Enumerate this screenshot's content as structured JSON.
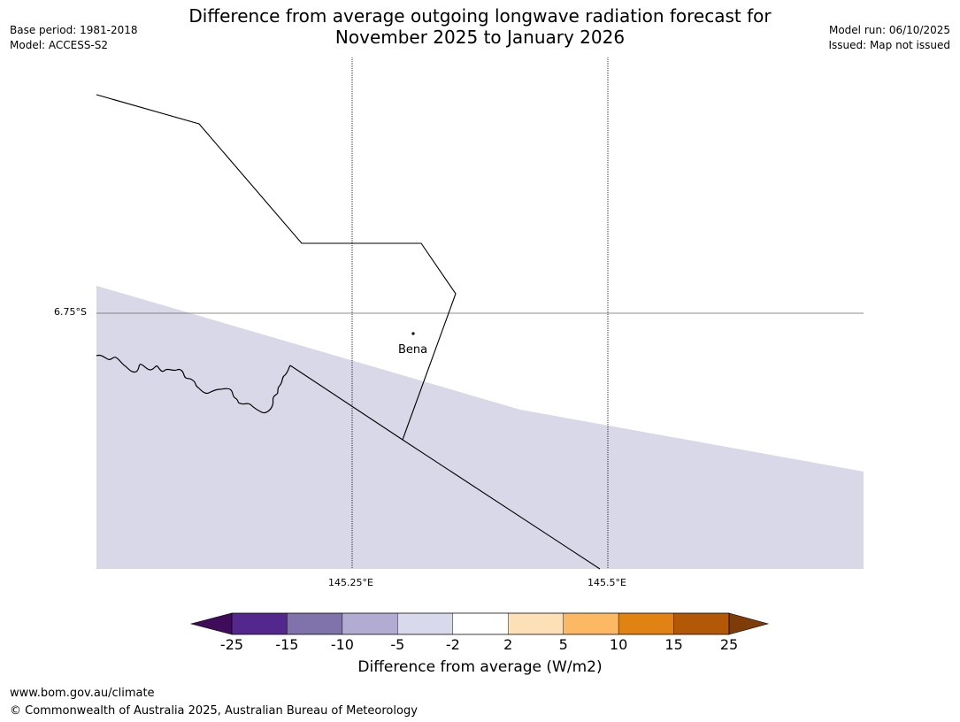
{
  "header": {
    "title_line1": "Difference from average outgoing longwave radiation forecast for",
    "title_line2": "November 2025 to January 2026",
    "base_period": "Base period: 1981-2018",
    "model": "Model: ACCESS-S2",
    "model_run": "Model run: 06/10/2025",
    "issued": "Issued: Map not issued"
  },
  "map": {
    "lat_labels": [
      "6.75°S"
    ],
    "lon_labels": [
      "145.25°E",
      "145.5°E"
    ],
    "place": "Bena",
    "colors": {
      "shading": "#d8d8e8",
      "boundary": "#000000",
      "gridline": "#666666"
    },
    "shaded_category": "-5 to -2"
  },
  "colorbar": {
    "ticks": [
      "-25",
      "-15",
      "-10",
      "-5",
      "-2",
      "2",
      "5",
      "10",
      "15",
      "25"
    ],
    "colors": [
      "#3f0c5c",
      "#54278f",
      "#8073ac",
      "#b2abd2",
      "#d8daeb",
      "#ffffff",
      "#fee0b6",
      "#fdb863",
      "#e08214",
      "#b35806",
      "#7f3b08"
    ],
    "title": "Difference from average (W/m2)"
  },
  "footer": {
    "url": "www.bom.gov.au/climate",
    "copyright": "© Commonwealth of Australia 2025, Australian Bureau of Meteorology"
  }
}
